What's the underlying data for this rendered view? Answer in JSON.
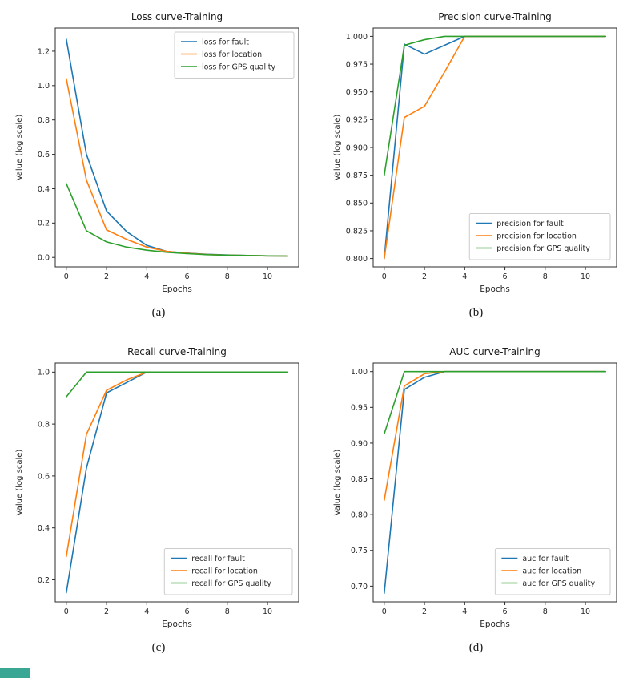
{
  "page": {
    "background": "#ffffff"
  },
  "colors": {
    "axis": "#2b2b2b",
    "text": "#262626",
    "legend_border": "#cccccc",
    "artifact_teal": "#3aa794"
  },
  "chart_data": [
    {
      "type": "line",
      "title": "Loss curve-Training",
      "xlabel": "Epochs",
      "ylabel": "Value (log scale)",
      "caption": "(a)",
      "legend_position": "upper-right",
      "x": [
        0,
        1,
        2,
        3,
        4,
        5,
        6,
        7,
        8,
        9,
        10,
        11
      ],
      "xlim": [
        -0.55,
        11.55
      ],
      "ylim": [
        -0.055,
        1.335
      ],
      "xticks": [
        0,
        2,
        4,
        6,
        8,
        10
      ],
      "xtick_labels": [
        "0",
        "2",
        "4",
        "6",
        "8",
        "10"
      ],
      "yticks": [
        0.0,
        0.2,
        0.4,
        0.6,
        0.8,
        1.0,
        1.2
      ],
      "ytick_labels": [
        "0.0",
        "0.2",
        "0.4",
        "0.6",
        "0.8",
        "1.0",
        "1.2"
      ],
      "series": [
        {
          "name": "loss for fault",
          "color": "#1f77b4",
          "values": [
            1.27,
            0.6,
            0.27,
            0.15,
            0.07,
            0.035,
            0.025,
            0.018,
            0.014,
            0.011,
            0.009,
            0.008
          ]
        },
        {
          "name": "loss for location",
          "color": "#ff7f0e",
          "values": [
            1.04,
            0.45,
            0.16,
            0.105,
            0.06,
            0.035,
            0.024,
            0.017,
            0.013,
            0.011,
            0.009,
            0.008
          ]
        },
        {
          "name": "loss for GPS quality",
          "color": "#2ca02c",
          "values": [
            0.43,
            0.155,
            0.09,
            0.06,
            0.042,
            0.03,
            0.022,
            0.016,
            0.013,
            0.011,
            0.009,
            0.008
          ]
        }
      ]
    },
    {
      "type": "line",
      "title": "Precision curve-Training",
      "xlabel": "Epochs",
      "ylabel": "Value (log scale)",
      "caption": "(b)",
      "legend_position": "lower-right",
      "x": [
        0,
        1,
        2,
        3,
        4,
        5,
        6,
        7,
        8,
        9,
        10,
        11
      ],
      "xlim": [
        -0.55,
        11.55
      ],
      "ylim": [
        0.7925,
        1.0075
      ],
      "xticks": [
        0,
        2,
        4,
        6,
        8,
        10
      ],
      "xtick_labels": [
        "0",
        "2",
        "4",
        "6",
        "8",
        "10"
      ],
      "yticks": [
        0.8,
        0.825,
        0.85,
        0.875,
        0.9,
        0.925,
        0.95,
        0.975,
        1.0
      ],
      "ytick_labels": [
        "0.800",
        "0.825",
        "0.850",
        "0.875",
        "0.900",
        "0.925",
        "0.950",
        "0.975",
        "1.000"
      ],
      "series": [
        {
          "name": "precision for fault",
          "color": "#1f77b4",
          "values": [
            0.8,
            0.993,
            0.984,
            0.992,
            1.0,
            1.0,
            1.0,
            1.0,
            1.0,
            1.0,
            1.0,
            1.0
          ]
        },
        {
          "name": "precision for location",
          "color": "#ff7f0e",
          "values": [
            0.8,
            0.927,
            0.937,
            0.968,
            1.0,
            1.0,
            1.0,
            1.0,
            1.0,
            1.0,
            1.0,
            1.0
          ]
        },
        {
          "name": "precision for GPS quality",
          "color": "#2ca02c",
          "values": [
            0.875,
            0.992,
            0.997,
            1.0,
            1.0,
            1.0,
            1.0,
            1.0,
            1.0,
            1.0,
            1.0,
            1.0
          ]
        }
      ]
    },
    {
      "type": "line",
      "title": "Recall curve-Training",
      "xlabel": "Epochs",
      "ylabel": "Value (log scale)",
      "caption": "(c)",
      "legend_position": "lower-right",
      "x": [
        0,
        1,
        2,
        3,
        4,
        5,
        6,
        7,
        8,
        9,
        10,
        11
      ],
      "xlim": [
        -0.55,
        11.55
      ],
      "ylim": [
        0.115,
        1.035
      ],
      "xticks": [
        0,
        2,
        4,
        6,
        8,
        10
      ],
      "xtick_labels": [
        "0",
        "2",
        "4",
        "6",
        "8",
        "10"
      ],
      "yticks": [
        0.2,
        0.4,
        0.6,
        0.8,
        1.0
      ],
      "ytick_labels": [
        "0.2",
        "0.4",
        "0.6",
        "0.8",
        "1.0"
      ],
      "series": [
        {
          "name": "recall for fault",
          "color": "#1f77b4",
          "values": [
            0.15,
            0.63,
            0.92,
            0.96,
            1.0,
            1.0,
            1.0,
            1.0,
            1.0,
            1.0,
            1.0,
            1.0
          ]
        },
        {
          "name": "recall for location",
          "color": "#ff7f0e",
          "values": [
            0.29,
            0.76,
            0.93,
            0.97,
            1.0,
            1.0,
            1.0,
            1.0,
            1.0,
            1.0,
            1.0,
            1.0
          ]
        },
        {
          "name": "recall for GPS quality",
          "color": "#2ca02c",
          "values": [
            0.905,
            1.0,
            1.0,
            1.0,
            1.0,
            1.0,
            1.0,
            1.0,
            1.0,
            1.0,
            1.0,
            1.0
          ]
        }
      ]
    },
    {
      "type": "line",
      "title": "AUC curve-Training",
      "xlabel": "Epochs",
      "ylabel": "Value (log scale)",
      "caption": "(d)",
      "legend_position": "lower-right",
      "x": [
        0,
        1,
        2,
        3,
        4,
        5,
        6,
        7,
        8,
        9,
        10,
        11
      ],
      "xlim": [
        -0.55,
        11.55
      ],
      "ylim": [
        0.678,
        1.012
      ],
      "xticks": [
        0,
        2,
        4,
        6,
        8,
        10
      ],
      "xtick_labels": [
        "0",
        "2",
        "4",
        "6",
        "8",
        "10"
      ],
      "yticks": [
        0.7,
        0.75,
        0.8,
        0.85,
        0.9,
        0.95,
        1.0
      ],
      "ytick_labels": [
        "0.70",
        "0.75",
        "0.80",
        "0.85",
        "0.90",
        "0.95",
        "1.00"
      ],
      "series": [
        {
          "name": "auc for fault",
          "color": "#1f77b4",
          "values": [
            0.69,
            0.975,
            0.992,
            1.0,
            1.0,
            1.0,
            1.0,
            1.0,
            1.0,
            1.0,
            1.0,
            1.0
          ]
        },
        {
          "name": "auc for location",
          "color": "#ff7f0e",
          "values": [
            0.82,
            0.98,
            0.997,
            1.0,
            1.0,
            1.0,
            1.0,
            1.0,
            1.0,
            1.0,
            1.0,
            1.0
          ]
        },
        {
          "name": "auc for GPS quality",
          "color": "#2ca02c",
          "values": [
            0.913,
            1.0,
            1.0,
            1.0,
            1.0,
            1.0,
            1.0,
            1.0,
            1.0,
            1.0,
            1.0,
            1.0
          ]
        }
      ]
    }
  ]
}
